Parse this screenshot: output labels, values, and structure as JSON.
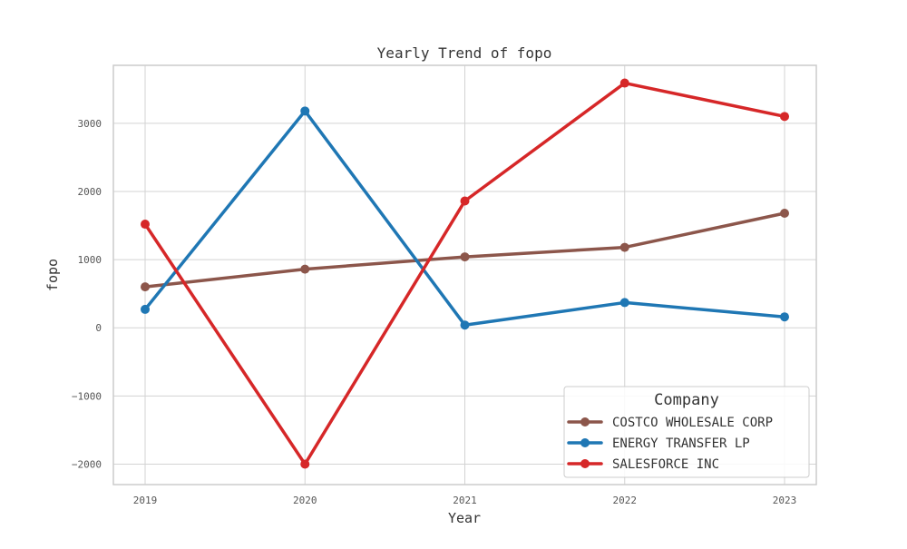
{
  "chart_data": {
    "type": "line",
    "title": "Yearly Trend of fopo",
    "xlabel": "Year",
    "ylabel": "fopo",
    "x": [
      "2019",
      "2020",
      "2021",
      "2022",
      "2023"
    ],
    "ylim": [
      -2300,
      3850
    ],
    "yticks": [
      -2000,
      -1000,
      0,
      1000,
      2000,
      3000
    ],
    "y_tick_labels": [
      "−2000",
      "−1000",
      "0",
      "1000",
      "2000",
      "3000"
    ],
    "grid": true,
    "legend": {
      "title": "Company",
      "placement": "lower-right"
    },
    "series": [
      {
        "name": "COSTCO WHOLESALE CORP",
        "color": "#8c564b",
        "values": [
          600,
          860,
          1040,
          1180,
          1680
        ]
      },
      {
        "name": "ENERGY TRANSFER LP",
        "color": "#1f77b4",
        "values": [
          270,
          3180,
          40,
          370,
          160
        ]
      },
      {
        "name": "SALESFORCE INC",
        "color": "#d62728",
        "values": [
          1520,
          -2000,
          1860,
          3590,
          3100
        ]
      }
    ]
  }
}
